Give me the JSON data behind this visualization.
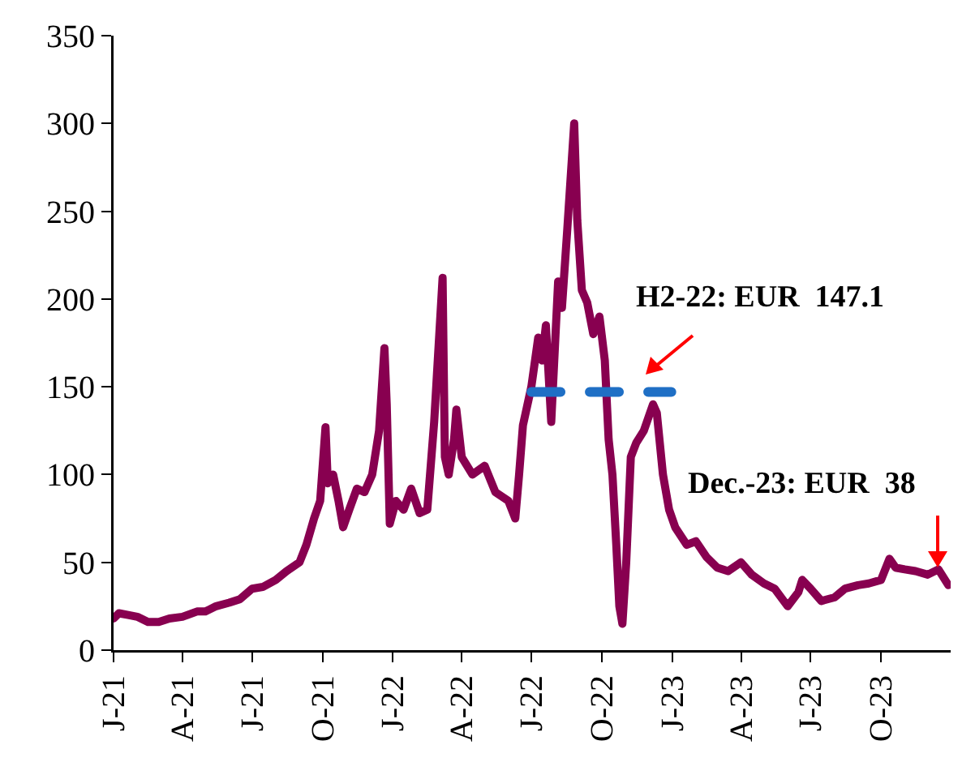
{
  "chart_data": {
    "type": "line",
    "xlim": [
      "2021-01-01",
      "2023-12-31"
    ],
    "xticks": [
      {
        "value": "2021-01-01",
        "label": "J-21"
      },
      {
        "value": "2021-04-01",
        "label": "A-21"
      },
      {
        "value": "2021-07-01",
        "label": "J-21"
      },
      {
        "value": "2021-10-01",
        "label": "O-21"
      },
      {
        "value": "2022-01-01",
        "label": "J-22"
      },
      {
        "value": "2022-04-01",
        "label": "A-22"
      },
      {
        "value": "2022-07-01",
        "label": "J-22"
      },
      {
        "value": "2022-10-01",
        "label": "O-22"
      },
      {
        "value": "2023-01-01",
        "label": "J-23"
      },
      {
        "value": "2023-04-01",
        "label": "A-23"
      },
      {
        "value": "2023-07-01",
        "label": "J-23"
      },
      {
        "value": "2023-10-01",
        "label": "O-23"
      }
    ],
    "ylim": [
      0,
      350
    ],
    "yticks": [
      0,
      50,
      100,
      150,
      200,
      250,
      300,
      350
    ],
    "grid": false,
    "marker": "none",
    "series": [
      {
        "color": "#880050",
        "line_style": "solid",
        "x": [
          "2021-01-01",
          "2021-01-08",
          "2021-01-20",
          "2021-02-01",
          "2021-02-15",
          "2021-03-01",
          "2021-03-15",
          "2021-04-01",
          "2021-04-20",
          "2021-05-01",
          "2021-05-15",
          "2021-06-01",
          "2021-06-15",
          "2021-07-01",
          "2021-07-15",
          "2021-08-01",
          "2021-08-15",
          "2021-09-01",
          "2021-09-10",
          "2021-09-20",
          "2021-09-28",
          "2021-10-05",
          "2021-10-08",
          "2021-10-15",
          "2021-10-22",
          "2021-10-28",
          "2021-11-05",
          "2021-11-15",
          "2021-11-25",
          "2021-12-05",
          "2021-12-14",
          "2021-12-21",
          "2021-12-24",
          "2021-12-28",
          "2022-01-05",
          "2022-01-15",
          "2022-01-25",
          "2022-02-05",
          "2022-02-15",
          "2022-02-24",
          "2022-03-07",
          "2022-03-10",
          "2022-03-15",
          "2022-03-22",
          "2022-03-25",
          "2022-04-01",
          "2022-04-15",
          "2022-05-01",
          "2022-05-15",
          "2022-06-01",
          "2022-06-10",
          "2022-06-15",
          "2022-06-20",
          "2022-07-01",
          "2022-07-10",
          "2022-07-15",
          "2022-07-20",
          "2022-07-27",
          "2022-08-05",
          "2022-08-10",
          "2022-08-17",
          "2022-08-26",
          "2022-08-30",
          "2022-09-05",
          "2022-09-12",
          "2022-09-20",
          "2022-09-28",
          "2022-10-05",
          "2022-10-10",
          "2022-10-15",
          "2022-10-20",
          "2022-10-24",
          "2022-10-28",
          "2022-11-02",
          "2022-11-08",
          "2022-11-15",
          "2022-11-25",
          "2022-12-07",
          "2022-12-12",
          "2022-12-20",
          "2022-12-28",
          "2023-01-05",
          "2023-01-20",
          "2023-02-01",
          "2023-02-15",
          "2023-03-01",
          "2023-03-15",
          "2023-04-01",
          "2023-04-15",
          "2023-05-01",
          "2023-05-15",
          "2023-06-01",
          "2023-06-15",
          "2023-06-20",
          "2023-07-01",
          "2023-07-15",
          "2023-08-01",
          "2023-08-15",
          "2023-09-01",
          "2023-09-15",
          "2023-10-01",
          "2023-10-12",
          "2023-10-20",
          "2023-11-01",
          "2023-11-15",
          "2023-12-01",
          "2023-12-15",
          "2023-12-28"
        ],
        "values": [
          18,
          21,
          20,
          19,
          16,
          16,
          18,
          19,
          22,
          22,
          25,
          27,
          29,
          35,
          36,
          40,
          45,
          50,
          60,
          75,
          85,
          127,
          95,
          100,
          85,
          70,
          80,
          92,
          90,
          100,
          125,
          172,
          140,
          72,
          85,
          80,
          92,
          78,
          80,
          130,
          212,
          110,
          100,
          120,
          137,
          110,
          100,
          105,
          90,
          85,
          75,
          100,
          128,
          150,
          178,
          165,
          185,
          130,
          210,
          195,
          240,
          300,
          245,
          205,
          198,
          180,
          190,
          165,
          120,
          100,
          60,
          25,
          15,
          50,
          110,
          118,
          125,
          140,
          135,
          100,
          80,
          70,
          60,
          62,
          53,
          47,
          45,
          50,
          43,
          38,
          35,
          25,
          33,
          40,
          35,
          28,
          30,
          35,
          37,
          38,
          40,
          52,
          47,
          46,
          45,
          43,
          46,
          37
        ]
      },
      {
        "color": "#1f6fc5",
        "line_style": "dashed",
        "x": [
          "2022-07-01",
          "2022-12-31"
        ],
        "values": [
          147.1,
          147.1
        ]
      }
    ],
    "annotations": [
      "H2-22: EUR  147.1",
      "Dec.-23: EUR  38"
    ]
  }
}
